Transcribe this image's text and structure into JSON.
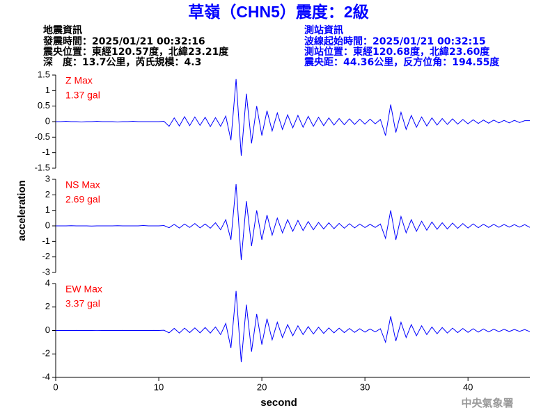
{
  "header": {
    "title": "草嶺（CHN5）震度：2級",
    "left": [
      "地震資訊",
      "發震時間：2025/01/21 00:32:16",
      "震央位置：東經120.57度，北緯23.21度",
      "深　度：13.7公里，芮氏規模：4.3"
    ],
    "right": [
      "測站資訊",
      "波線起始時間：2025/01/21 00:32:15",
      "測站位置：東經120.68度，北緯23.60度",
      "震央距：44.36公里，反方位角：194.55度"
    ]
  },
  "ylabel": "acceleration",
  "footer": "中央氣象署",
  "chart_data": [
    {
      "type": "line",
      "annotations": [
        "Z Max",
        "1.37 gal"
      ],
      "color": "#0000ff",
      "xlim": [
        0,
        46
      ],
      "ylim": [
        -1.5,
        1.5
      ],
      "yticks": [
        -1.5,
        -1,
        -0.5,
        0,
        0.5,
        1,
        1.5
      ],
      "x": [
        0,
        0.5,
        1,
        1.5,
        2,
        2.5,
        3,
        3.5,
        4,
        4.5,
        5,
        5.5,
        6,
        6.5,
        7,
        7.5,
        8,
        8.5,
        9,
        9.5,
        10,
        10.5,
        11,
        11.5,
        12,
        12.5,
        13,
        13.5,
        14,
        14.5,
        15,
        15.5,
        16,
        16.5,
        17,
        17.5,
        18,
        18.5,
        19,
        19.5,
        20,
        20.5,
        21,
        21.5,
        22,
        22.5,
        23,
        23.5,
        24,
        24.5,
        25,
        25.5,
        26,
        26.5,
        27,
        27.5,
        28,
        28.5,
        29,
        29.5,
        30,
        30.5,
        31,
        31.5,
        32,
        32.5,
        33,
        33.5,
        34,
        34.5,
        35,
        35.5,
        36,
        36.5,
        37,
        37.5,
        38,
        38.5,
        39,
        39.5,
        40,
        40.5,
        41,
        41.5,
        42,
        42.5,
        43,
        43.5,
        44,
        44.5,
        45,
        45.5,
        46
      ],
      "values": [
        0,
        0,
        0.01,
        0,
        0,
        -0.01,
        0,
        0,
        0.01,
        0,
        0,
        0,
        -0.01,
        0,
        0,
        0.01,
        0,
        0,
        0,
        0,
        0,
        0.01,
        -0.15,
        0.12,
        -0.14,
        0.16,
        -0.13,
        0.15,
        -0.12,
        0.14,
        -0.16,
        0.13,
        -0.15,
        0.18,
        -0.6,
        1.37,
        -1.1,
        0.9,
        -0.7,
        0.5,
        -0.45,
        0.35,
        -0.3,
        0.28,
        -0.25,
        0.22,
        -0.2,
        0.2,
        -0.18,
        0.17,
        -0.15,
        0.14,
        -0.13,
        0.12,
        -0.11,
        0.1,
        -0.1,
        0.09,
        -0.09,
        0.08,
        -0.08,
        0.08,
        -0.07,
        0.07,
        -0.45,
        0.55,
        -0.35,
        0.3,
        -0.25,
        0.2,
        -0.18,
        0.15,
        -0.14,
        0.12,
        -0.11,
        0.1,
        -0.09,
        0.09,
        -0.08,
        0.07,
        -0.07,
        0.06,
        -0.06,
        0.05,
        -0.05,
        0.05,
        -0.04,
        0.04,
        -0.04,
        0.04,
        -0.03,
        0.03,
        0.03
      ]
    },
    {
      "type": "line",
      "annotations": [
        "NS Max",
        "2.69 gal"
      ],
      "color": "#0000ff",
      "xlim": [
        0,
        46
      ],
      "ylim": [
        -3,
        3
      ],
      "yticks": [
        -3,
        -2,
        -1,
        0,
        1,
        2,
        3
      ],
      "x": [
        0,
        0.5,
        1,
        1.5,
        2,
        2.5,
        3,
        3.5,
        4,
        4.5,
        5,
        5.5,
        6,
        6.5,
        7,
        7.5,
        8,
        8.5,
        9,
        9.5,
        10,
        10.5,
        11,
        11.5,
        12,
        12.5,
        13,
        13.5,
        14,
        14.5,
        15,
        15.5,
        16,
        16.5,
        17,
        17.5,
        18,
        18.5,
        19,
        19.5,
        20,
        20.5,
        21,
        21.5,
        22,
        22.5,
        23,
        23.5,
        24,
        24.5,
        25,
        25.5,
        26,
        26.5,
        27,
        27.5,
        28,
        28.5,
        29,
        29.5,
        30,
        30.5,
        31,
        31.5,
        32,
        32.5,
        33,
        33.5,
        34,
        34.5,
        35,
        35.5,
        36,
        36.5,
        37,
        37.5,
        38,
        38.5,
        39,
        39.5,
        40,
        40.5,
        41,
        41.5,
        42,
        42.5,
        43,
        43.5,
        44,
        44.5,
        45,
        45.5,
        46
      ],
      "values": [
        0,
        0,
        0,
        0.01,
        0,
        0,
        0,
        -0.01,
        0,
        0,
        0,
        0,
        0.01,
        0,
        0,
        0,
        0,
        0.02,
        0,
        0,
        0,
        0.02,
        -0.12,
        0.1,
        -0.14,
        0.12,
        -0.1,
        0.15,
        -0.13,
        0.12,
        -0.15,
        0.2,
        -0.25,
        0.4,
        -0.9,
        2.69,
        -2.2,
        1.6,
        -1.3,
        1.0,
        -0.9,
        0.7,
        -0.6,
        0.5,
        -0.45,
        0.4,
        -0.35,
        0.35,
        -0.3,
        0.28,
        -0.25,
        0.22,
        -0.2,
        0.2,
        -0.18,
        0.16,
        -0.15,
        0.14,
        -0.13,
        0.12,
        -0.11,
        0.1,
        -0.1,
        0.12,
        -0.8,
        1.0,
        -0.9,
        0.6,
        -0.45,
        0.4,
        -0.35,
        0.3,
        -0.28,
        0.25,
        -0.22,
        0.2,
        -0.2,
        0.18,
        -0.16,
        0.15,
        -0.14,
        0.13,
        -0.12,
        0.11,
        -0.1,
        0.1,
        -0.09,
        0.09,
        -0.08,
        0.08,
        -0.08,
        0.08,
        -0.1
      ]
    },
    {
      "type": "line",
      "annotations": [
        "EW Max",
        "3.37 gal"
      ],
      "color": "#0000ff",
      "xlim": [
        0,
        46
      ],
      "ylim": [
        -4,
        4
      ],
      "yticks": [
        -4,
        -2,
        0,
        2,
        4
      ],
      "xticks": [
        0,
        10,
        20,
        30,
        40
      ],
      "xlabel": "second",
      "x": [
        0,
        0.5,
        1,
        1.5,
        2,
        2.5,
        3,
        3.5,
        4,
        4.5,
        5,
        5.5,
        6,
        6.5,
        7,
        7.5,
        8,
        8.5,
        9,
        9.5,
        10,
        10.5,
        11,
        11.5,
        12,
        12.5,
        13,
        13.5,
        14,
        14.5,
        15,
        15.5,
        16,
        16.5,
        17,
        17.5,
        18,
        18.5,
        19,
        19.5,
        20,
        20.5,
        21,
        21.5,
        22,
        22.5,
        23,
        23.5,
        24,
        24.5,
        25,
        25.5,
        26,
        26.5,
        27,
        27.5,
        28,
        28.5,
        29,
        29.5,
        30,
        30.5,
        31,
        31.5,
        32,
        32.5,
        33,
        33.5,
        34,
        34.5,
        35,
        35.5,
        36,
        36.5,
        37,
        37.5,
        38,
        38.5,
        39,
        39.5,
        40,
        40.5,
        41,
        41.5,
        42,
        42.5,
        43,
        43.5,
        44,
        44.5,
        45,
        45.5,
        46
      ],
      "values": [
        0,
        0,
        0,
        0,
        0.01,
        0,
        0,
        0,
        -0.01,
        0,
        0,
        0,
        0,
        0.01,
        0,
        0,
        0,
        0,
        0,
        0.01,
        0,
        0.02,
        -0.2,
        0.18,
        -0.22,
        0.2,
        -0.18,
        0.22,
        -0.2,
        0.25,
        -0.22,
        0.3,
        -0.35,
        0.6,
        -1.5,
        3.37,
        -2.7,
        2.2,
        -1.8,
        1.4,
        -1.2,
        1.0,
        -0.8,
        0.7,
        -0.6,
        0.5,
        -0.45,
        0.4,
        -0.35,
        0.33,
        -0.3,
        0.28,
        -0.25,
        0.22,
        -0.2,
        0.2,
        -0.18,
        0.17,
        -0.16,
        0.15,
        -0.14,
        0.13,
        -0.12,
        0.15,
        -1.0,
        1.2,
        -0.9,
        0.7,
        -0.6,
        0.5,
        -0.45,
        0.4,
        -0.35,
        0.3,
        -0.28,
        0.25,
        -0.22,
        0.2,
        -0.18,
        0.17,
        -0.16,
        0.15,
        -0.14,
        0.13,
        -0.12,
        0.11,
        -0.1,
        0.1,
        -0.09,
        0.09,
        -0.08,
        0.08,
        -0.1
      ]
    }
  ]
}
